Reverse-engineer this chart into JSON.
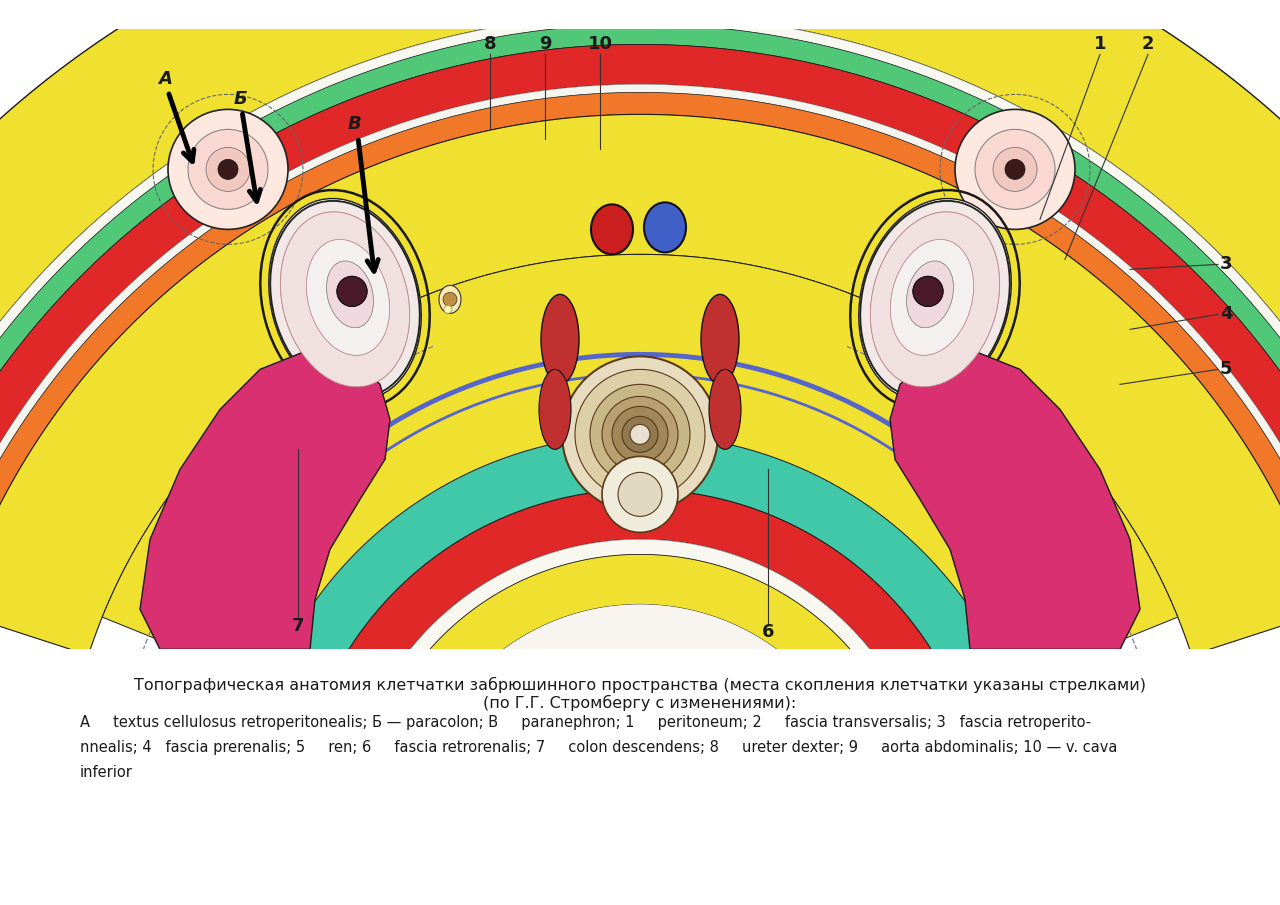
{
  "title_line1": "Топографическая анатомия клетчатки забрюшинного пространства (места скопления клетчатки указаны стрелками)",
  "title_line2": "(по Г.Г. Стромбергу с изменениями):",
  "caption_line1": "А     textus cellulosus retroperitonealis; Б — paracolon; В     paranephron; 1     peritoneum; 2     fascia transversalis; 3   fascia retroperito-",
  "caption_line2": "nnealis; 4   fascia prerenalis; 5     ren; 6     fascia retrorenalis; 7     colon descendens; 8     ureter dexter; 9     aorta abdominalis; 10 — v. cava",
  "caption_line3": "inferior",
  "bg_color": "#ffffff",
  "text_color": "#1a1a1a",
  "title_fontsize": 11.5,
  "caption_fontsize": 10.5
}
